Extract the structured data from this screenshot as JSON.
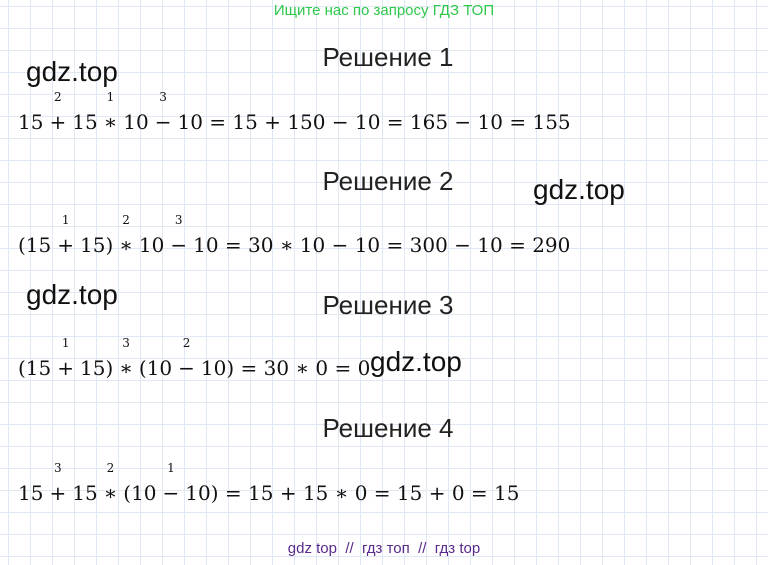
{
  "header": "Ищите нас по запросу ГДЗ ТОП",
  "solutions": [
    {
      "title": "Решение 1",
      "equation": [
        {
          "text": "15"
        },
        {
          "op": "+",
          "order": 2
        },
        {
          "text": "15"
        },
        {
          "op": "∗",
          "order": 1
        },
        {
          "text": "10"
        },
        {
          "op": "−",
          "order": 3
        },
        {
          "text": "10 = 15 + 150 − 10 = 165 − 10 = 155"
        }
      ]
    },
    {
      "title": "Решение 2",
      "equation": [
        {
          "text": "(15"
        },
        {
          "op": "+",
          "order": 1
        },
        {
          "text": "15)"
        },
        {
          "op": "∗",
          "order": 2
        },
        {
          "text": "10"
        },
        {
          "op": "−",
          "order": 3
        },
        {
          "text": "10 = 30 ∗ 10 − 10 = 300 − 10 = 290"
        }
      ]
    },
    {
      "title": "Решение 3",
      "equation": [
        {
          "text": "(15"
        },
        {
          "op": "+",
          "order": 1
        },
        {
          "text": "15)"
        },
        {
          "op": "∗",
          "order": 3
        },
        {
          "text": "(10"
        },
        {
          "op": "−",
          "order": 2
        },
        {
          "text": "10) = 30 ∗ 0 = 0"
        }
      ]
    },
    {
      "title": "Решение 4",
      "equation": [
        {
          "text": "15"
        },
        {
          "op": "+",
          "order": 3
        },
        {
          "text": "15"
        },
        {
          "op": "∗",
          "order": 2
        },
        {
          "text": "(10"
        },
        {
          "op": "−",
          "order": 1
        },
        {
          "text": "10) = 15 + 15 ∗ 0 = 15 + 0 = 15"
        }
      ]
    }
  ],
  "watermarks": [
    "gdz.top",
    "gdz.top",
    "gdz.top",
    "gdz.top"
  ],
  "footer": "gdz top  //  гдз топ  //  гдз top"
}
